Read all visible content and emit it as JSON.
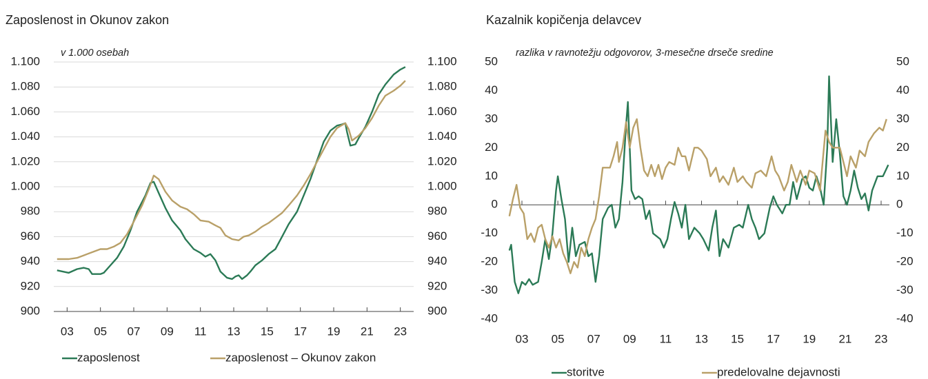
{
  "chart_data": [
    {
      "type": "line",
      "title": "Zaposlenost in Okunov zakon",
      "subtitle": "v 1.000 osebah",
      "grid": true,
      "xlim": [
        2002.2,
        2023.8
      ],
      "xticks": [
        {
          "value": 2003,
          "label": "03"
        },
        {
          "value": 2005,
          "label": "05"
        },
        {
          "value": 2007,
          "label": "07"
        },
        {
          "value": 2009,
          "label": "09"
        },
        {
          "value": 2011,
          "label": "11"
        },
        {
          "value": 2013,
          "label": "13"
        },
        {
          "value": 2015,
          "label": "15"
        },
        {
          "value": 2017,
          "label": "17"
        },
        {
          "value": 2019,
          "label": "19"
        },
        {
          "value": 2021,
          "label": "21"
        },
        {
          "value": 2023,
          "label": "23"
        }
      ],
      "ylim": [
        900,
        1100
      ],
      "yticks": [
        900,
        920,
        940,
        960,
        980,
        {
          "value": 1000,
          "label": "1.000"
        },
        {
          "value": 1020,
          "label": "1.020"
        },
        {
          "value": 1040,
          "label": "1.040"
        },
        {
          "value": 1060,
          "label": "1.060"
        },
        {
          "value": 1080,
          "label": "1.080"
        },
        {
          "value": 1100,
          "label": "1.100"
        }
      ],
      "y2lim": [
        900,
        1100
      ],
      "y2ticks": [
        900,
        920,
        940,
        960,
        980,
        {
          "value": 1000,
          "label": "1.000"
        },
        {
          "value": 1020,
          "label": "1.020"
        },
        {
          "value": 1040,
          "label": "1.040"
        },
        {
          "value": 1060,
          "label": "1.060"
        },
        {
          "value": 1080,
          "label": "1.080"
        },
        {
          "value": 1100,
          "label": "1.100"
        }
      ],
      "series": [
        {
          "name": "zaposlenost",
          "color": "#2b7a56",
          "x": [
            2002.4,
            2003.1,
            2003.6,
            2004.0,
            2004.3,
            2004.5,
            2005.0,
            2005.2,
            2005.6,
            2006.0,
            2006.4,
            2006.8,
            2007.2,
            2007.7,
            2008.0,
            2008.2,
            2008.5,
            2008.9,
            2009.3,
            2009.8,
            2010.1,
            2010.6,
            2011.0,
            2011.3,
            2011.6,
            2011.9,
            2012.2,
            2012.6,
            2012.9,
            2013.1,
            2013.3,
            2013.5,
            2013.8,
            2014.0,
            2014.3,
            2014.7,
            2015.1,
            2015.5,
            2015.9,
            2016.3,
            2016.8,
            2017.2,
            2017.6,
            2018.0,
            2018.4,
            2018.8,
            2019.2,
            2019.5,
            2019.7,
            2019.8,
            2020.0,
            2020.3,
            2020.5,
            2020.9,
            2021.3,
            2021.7,
            2022.1,
            2022.6,
            2023.0,
            2023.3
          ],
          "values": [
            933,
            931,
            934,
            935,
            934,
            930,
            930,
            931,
            937,
            943,
            952,
            965,
            980,
            993,
            1003,
            1004,
            995,
            983,
            973,
            965,
            958,
            950,
            947,
            944,
            946,
            941,
            932,
            927,
            926,
            928,
            929,
            926,
            929,
            932,
            937,
            941,
            946,
            950,
            960,
            970,
            980,
            993,
            1006,
            1021,
            1036,
            1045,
            1049,
            1050,
            1051,
            1044,
            1033,
            1034,
            1039,
            1048,
            1060,
            1074,
            1082,
            1090,
            1094,
            1096
          ]
        },
        {
          "name": "zaposlenost – Okunov zakon",
          "color": "#b9a068",
          "x": [
            2002.4,
            2003.1,
            2003.6,
            2004.0,
            2004.6,
            2005.0,
            2005.4,
            2005.8,
            2006.2,
            2006.6,
            2007.0,
            2007.5,
            2007.9,
            2008.2,
            2008.5,
            2008.9,
            2009.3,
            2009.8,
            2010.2,
            2010.6,
            2011.0,
            2011.5,
            2011.9,
            2012.2,
            2012.5,
            2012.9,
            2013.3,
            2013.6,
            2013.9,
            2014.3,
            2014.7,
            2015.1,
            2015.5,
            2015.9,
            2016.3,
            2016.8,
            2017.2,
            2017.6,
            2018.0,
            2018.4,
            2018.8,
            2019.2,
            2019.7,
            2019.9,
            2020.1,
            2020.5,
            2020.9,
            2021.3,
            2021.7,
            2022.1,
            2022.6,
            2023.0,
            2023.3
          ],
          "values": [
            942,
            942,
            943,
            945,
            948,
            950,
            950,
            952,
            955,
            962,
            972,
            985,
            998,
            1009,
            1006,
            996,
            989,
            984,
            982,
            978,
            973,
            972,
            969,
            967,
            961,
            958,
            957,
            960,
            961,
            964,
            968,
            971,
            975,
            979,
            985,
            993,
            1001,
            1010,
            1020,
            1030,
            1040,
            1047,
            1051,
            1046,
            1037,
            1041,
            1047,
            1055,
            1065,
            1073,
            1077,
            1081,
            1085
          ]
        }
      ]
    },
    {
      "type": "line",
      "title": "Kazalnik kopičenja delavcev",
      "subtitle": "razlika v ravnotežju odgovorov, 3-mesečne drseče sredine",
      "grid": false,
      "xlim": [
        2002.27,
        2023.46
      ],
      "xticks": [
        {
          "value": 2003,
          "label": "03"
        },
        {
          "value": 2005,
          "label": "05"
        },
        {
          "value": 2007,
          "label": "07"
        },
        {
          "value": 2009,
          "label": "09"
        },
        {
          "value": 2011,
          "label": "11"
        },
        {
          "value": 2013,
          "label": "13"
        },
        {
          "value": 2015,
          "label": "15"
        },
        {
          "value": 2017,
          "label": "17"
        },
        {
          "value": 2019,
          "label": "19"
        },
        {
          "value": 2021,
          "label": "21"
        },
        {
          "value": 2023,
          "label": "23"
        }
      ],
      "ylim": [
        -40,
        50
      ],
      "yticks": [
        -40,
        -30,
        -20,
        -10,
        0,
        10,
        20,
        30,
        40,
        50
      ],
      "y2lim": [
        -40,
        50
      ],
      "y2ticks": [
        -40,
        -30,
        -20,
        -10,
        0,
        10,
        20,
        30,
        40,
        50
      ],
      "series": [
        {
          "name": "storitve",
          "color": "#2b7a56",
          "x": [
            2002.3,
            2002.4,
            2002.6,
            2002.8,
            2003.0,
            2003.2,
            2003.4,
            2003.6,
            2003.9,
            2004.1,
            2004.3,
            2004.5,
            2004.7,
            2004.9,
            2005.0,
            2005.2,
            2005.4,
            2005.6,
            2005.8,
            2006.0,
            2006.2,
            2006.5,
            2006.7,
            2006.9,
            2007.1,
            2007.3,
            2007.5,
            2007.8,
            2008.0,
            2008.2,
            2008.4,
            2008.6,
            2008.8,
            2008.9,
            2009.1,
            2009.3,
            2009.5,
            2009.7,
            2009.9,
            2010.1,
            2010.3,
            2010.5,
            2010.7,
            2010.9,
            2011.1,
            2011.3,
            2011.5,
            2011.7,
            2011.9,
            2012.1,
            2012.3,
            2012.6,
            2012.9,
            2013.1,
            2013.4,
            2013.6,
            2013.8,
            2014.0,
            2014.2,
            2014.5,
            2014.8,
            2015.1,
            2015.3,
            2015.6,
            2015.8,
            2016.0,
            2016.2,
            2016.5,
            2016.8,
            2017.0,
            2017.2,
            2017.5,
            2017.7,
            2017.9,
            2018.1,
            2018.3,
            2018.6,
            2018.8,
            2019.0,
            2019.2,
            2019.4,
            2019.6,
            2019.8,
            2020.0,
            2020.1,
            2020.3,
            2020.5,
            2020.7,
            2020.9,
            2021.1,
            2021.3,
            2021.5,
            2021.7,
            2021.9,
            2022.1,
            2022.3,
            2022.5,
            2022.8,
            2023.1,
            2023.4
          ],
          "values": [
            -16,
            -14,
            -27,
            -31,
            -27,
            -28,
            -26,
            -28,
            -27,
            -20,
            -12,
            -19,
            -10,
            5,
            10,
            2,
            -5,
            -20,
            -8,
            -18,
            -14,
            -13,
            -18,
            -17,
            -27,
            -18,
            -5,
            -1,
            0,
            -8,
            -5,
            8,
            28,
            36,
            5,
            2,
            3,
            2,
            -5,
            -2,
            -10,
            -11,
            -12,
            -15,
            -12,
            -5,
            1,
            -3,
            -8,
            0,
            -12,
            -8,
            -10,
            -12,
            -16,
            -8,
            -2,
            -18,
            -12,
            -15,
            -8,
            -7,
            -8,
            0,
            -5,
            -8,
            -12,
            -10,
            -1,
            3,
            0,
            -3,
            0,
            0,
            8,
            2,
            9,
            10,
            6,
            5,
            10,
            6,
            0,
            20,
            45,
            15,
            30,
            18,
            3,
            0,
            5,
            12,
            6,
            2,
            4,
            -2,
            5,
            10,
            10,
            14
          ]
        },
        {
          "name": "predelovalne dejavnosti",
          "color": "#b9a068",
          "x": [
            2002.3,
            2002.5,
            2002.7,
            2002.9,
            2003.1,
            2003.3,
            2003.5,
            2003.7,
            2003.9,
            2004.1,
            2004.3,
            2004.5,
            2004.7,
            2004.9,
            2005.1,
            2005.3,
            2005.5,
            2005.7,
            2005.9,
            2006.1,
            2006.3,
            2006.5,
            2006.7,
            2006.9,
            2007.1,
            2007.3,
            2007.5,
            2007.7,
            2007.9,
            2008.1,
            2008.3,
            2008.4,
            2008.6,
            2008.8,
            2009.0,
            2009.2,
            2009.4,
            2009.6,
            2009.8,
            2010.0,
            2010.2,
            2010.4,
            2010.6,
            2010.8,
            2011.0,
            2011.2,
            2011.5,
            2011.7,
            2011.9,
            2012.1,
            2012.3,
            2012.6,
            2012.8,
            2013.0,
            2013.3,
            2013.5,
            2013.8,
            2014.0,
            2014.2,
            2014.5,
            2014.8,
            2015.0,
            2015.3,
            2015.5,
            2015.8,
            2016.0,
            2016.3,
            2016.6,
            2016.9,
            2017.1,
            2017.3,
            2017.6,
            2017.8,
            2018.0,
            2018.3,
            2018.5,
            2018.8,
            2019.0,
            2019.3,
            2019.6,
            2019.9,
            2020.1,
            2020.3,
            2020.5,
            2020.7,
            2020.9,
            2021.1,
            2021.3,
            2021.6,
            2021.8,
            2022.1,
            2022.3,
            2022.6,
            2022.9,
            2023.1,
            2023.3
          ],
          "values": [
            -4,
            2,
            7,
            -1,
            -3,
            -12,
            -10,
            -13,
            -8,
            -7,
            -12,
            -15,
            -11,
            -15,
            -12,
            -17,
            -20,
            -24,
            -20,
            -22,
            -15,
            -18,
            -12,
            -8,
            -5,
            3,
            13,
            13,
            13,
            17,
            22,
            15,
            20,
            29,
            20,
            27,
            30,
            20,
            12,
            10,
            14,
            10,
            14,
            9,
            13,
            15,
            14,
            20,
            17,
            17,
            12,
            20,
            20,
            19,
            16,
            10,
            13,
            8,
            10,
            7,
            13,
            8,
            10,
            8,
            6,
            11,
            12,
            10,
            17,
            12,
            10,
            5,
            8,
            14,
            8,
            12,
            7,
            12,
            11,
            5,
            26,
            22,
            20,
            20,
            20,
            15,
            10,
            17,
            13,
            19,
            17,
            22,
            25,
            27,
            26,
            30
          ]
        }
      ]
    }
  ]
}
